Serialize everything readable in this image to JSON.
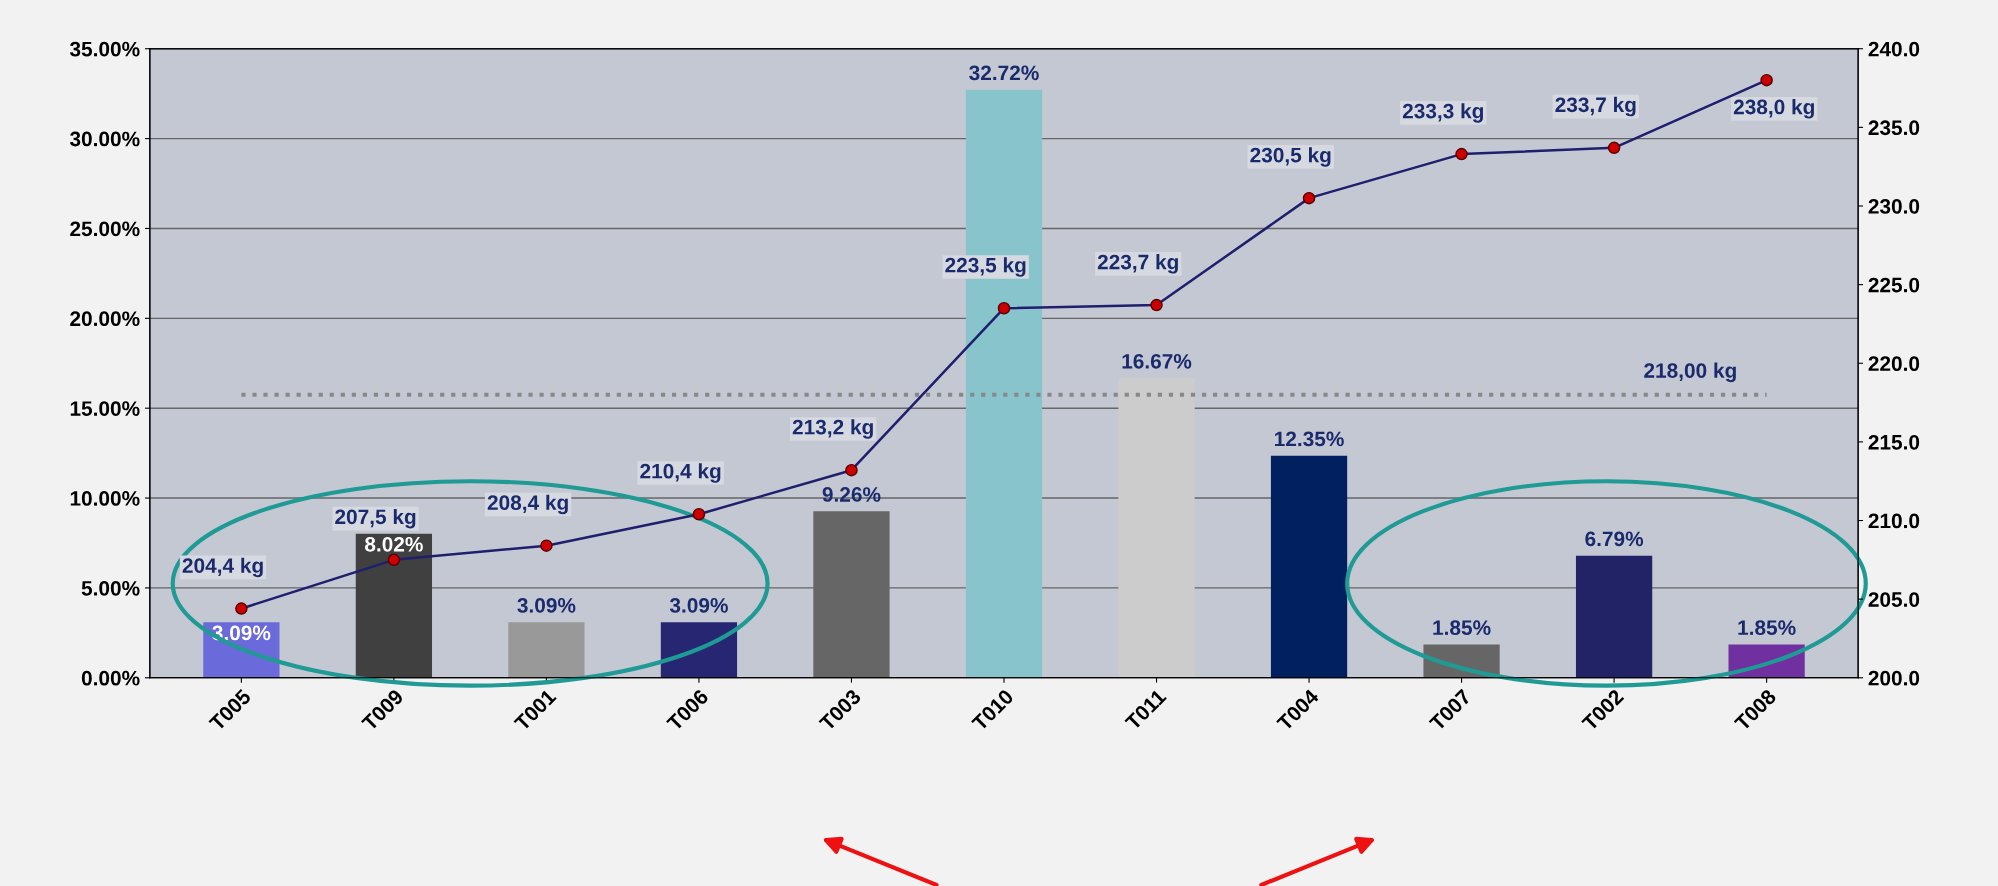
{
  "chart_data": {
    "type": "bar",
    "categories": [
      "T005",
      "T009",
      "T001",
      "T006",
      "T003",
      "T010",
      "T011",
      "T004",
      "T007",
      "T002",
      "T008"
    ],
    "values": [
      3.09,
      8.02,
      3.09,
      3.09,
      9.26,
      32.72,
      16.67,
      12.35,
      1.85,
      6.79,
      1.85
    ],
    "colors": [
      "#6a6adb",
      "#404040",
      "#999999",
      "#262673",
      "#666666",
      "#88c4cc",
      "#cccccc",
      "#002060",
      "#666666",
      "#222266",
      "#7030a0"
    ],
    "value_labels": [
      "3.09%",
      "8.02%",
      "3.09%",
      "3.09%",
      "9.26%",
      "32.72%",
      "16.67%",
      "12.35%",
      "1.85%",
      "6.79%",
      "1.85%"
    ],
    "series": [
      {
        "type": "line",
        "axis": "y2",
        "color": "#1f1f6e",
        "marker": "circle",
        "values": [
          204.4,
          207.5,
          208.4,
          210.4,
          213.2,
          223.5,
          223.7,
          230.5,
          233.3,
          233.7,
          238.0
        ],
        "value_labels": [
          "204,4 kg",
          "207,5 kg",
          "208,4 kg",
          "210,4 kg",
          "213,2 kg",
          "223,5 kg",
          "223,7 kg",
          "230,5 kg",
          "233,3 kg",
          "233,7 kg",
          "238,0 kg"
        ]
      }
    ],
    "ylim": [
      0,
      35
    ],
    "yticks": [
      {
        "value": 0,
        "label": "0.00%"
      },
      {
        "value": 5,
        "label": "5.00%"
      },
      {
        "value": 10,
        "label": "10.00%"
      },
      {
        "value": 15,
        "label": "15.00%"
      },
      {
        "value": 20,
        "label": "20.00%"
      },
      {
        "value": 25,
        "label": "25.00%"
      },
      {
        "value": 30,
        "label": "30.00%"
      },
      {
        "value": 35,
        "label": "35.00%"
      }
    ],
    "y2lim": [
      200,
      240
    ],
    "y2ticks": [
      {
        "value": 200,
        "label": "200.0"
      },
      {
        "value": 205,
        "label": "205.0"
      },
      {
        "value": 210,
        "label": "210.0"
      },
      {
        "value": 215,
        "label": "215.0"
      },
      {
        "value": 220,
        "label": "220.0"
      },
      {
        "value": 225,
        "label": "225.0"
      },
      {
        "value": 230,
        "label": "230.0"
      },
      {
        "value": 235,
        "label": "235.0"
      },
      {
        "value": 240,
        "label": "240.0"
      }
    ],
    "ref_lines": [
      {
        "axis": "y2",
        "value": 218,
        "label": "218,00 kg",
        "color": "#888888",
        "line_style": "dotted"
      }
    ],
    "grid": "y",
    "legend": false
  }
}
